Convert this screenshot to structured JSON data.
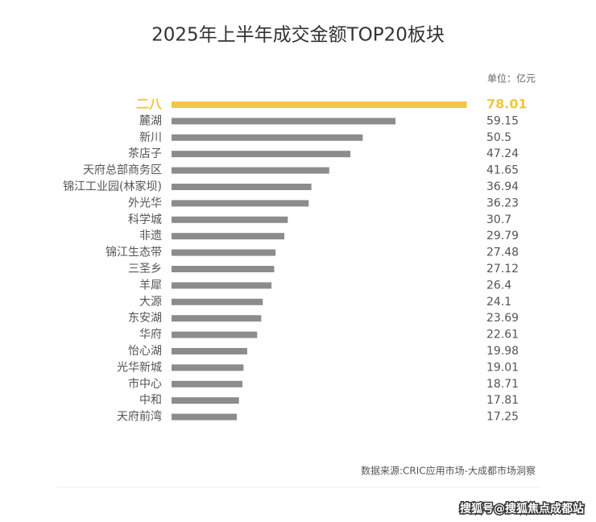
{
  "chart_data": {
    "type": "hbar",
    "title": "2025年上半年成交金额TOP20板块",
    "unit_label": "单位：亿元",
    "source": "数据来源:CRIC应用市场-大成都市场洞察",
    "watermark": "搜狐号@搜狐焦点成都站",
    "categories": [
      "二八",
      "麓湖",
      "新川",
      "茶店子",
      "天府总部商务区",
      "锦江工业园(林家坝)",
      "外光华",
      "科学城",
      "非遗",
      "锦江生态带",
      "三圣乡",
      "羊犀",
      "大源",
      "东安湖",
      "华府",
      "怡心湖",
      "光华新城",
      "市中心",
      "中和",
      "天府前湾"
    ],
    "values": [
      78.01,
      59.15,
      50.5,
      47.24,
      41.65,
      36.94,
      36.23,
      30.7,
      29.79,
      27.48,
      27.12,
      26.4,
      24.1,
      23.69,
      22.61,
      19.98,
      19.01,
      18.71,
      17.81,
      17.25
    ],
    "colors": [
      "#f2c640",
      "#8c8c8c",
      "#8c8c8c",
      "#8c8c8c",
      "#8c8c8c",
      "#8c8c8c",
      "#8c8c8c",
      "#8c8c8c",
      "#8c8c8c",
      "#8c8c8c",
      "#8c8c8c",
      "#8c8c8c",
      "#8c8c8c",
      "#8c8c8c",
      "#8c8c8c",
      "#8c8c8c",
      "#8c8c8c",
      "#8c8c8c",
      "#8c8c8c",
      "#8c8c8c"
    ],
    "xlim": [
      0,
      80
    ]
  }
}
